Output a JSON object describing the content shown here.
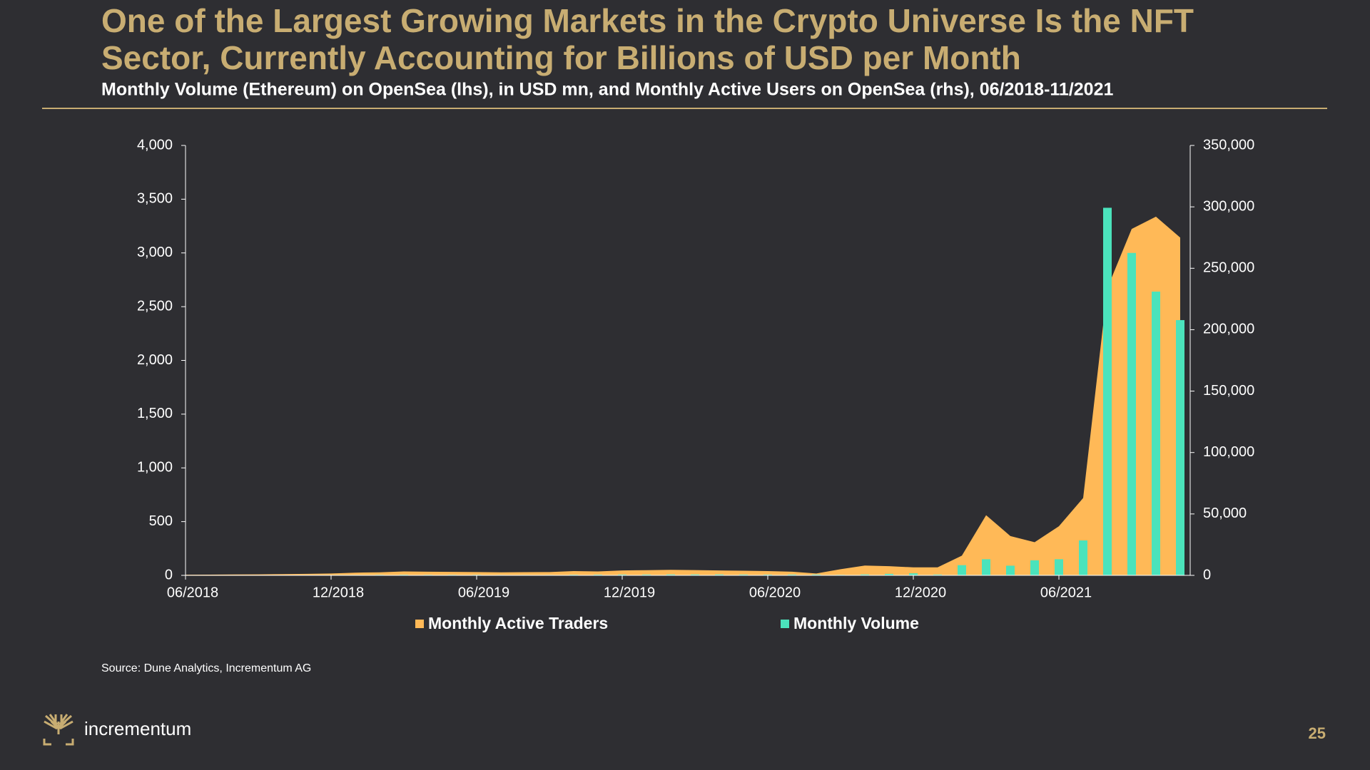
{
  "header": {
    "title_line1": "One of the Largest Growing Markets in the Crypto Universe Is the NFT",
    "title_line2": "Sector, Currently Accounting for Billions of USD per Month"
  },
  "chart_data": {
    "type": "combo",
    "subtitle": "Monthly Volume (Ethereum) on OpenSea (lhs), in USD mn, and Monthly Active Users on OpenSea (rhs), 06/2018-11/2021",
    "categories": [
      "06/2018",
      null,
      null,
      null,
      null,
      null,
      "12/2018",
      null,
      null,
      null,
      null,
      null,
      "06/2019",
      null,
      null,
      null,
      null,
      null,
      "12/2019",
      null,
      null,
      null,
      null,
      null,
      "06/2020",
      null,
      null,
      null,
      null,
      null,
      "12/2020",
      null,
      null,
      null,
      null,
      null,
      "06/2021",
      null,
      null,
      null,
      null,
      null
    ],
    "series": [
      {
        "name": "Monthly Active Traders",
        "type": "area",
        "axis": "y2",
        "color": "#ffb957",
        "values": [
          500,
          600,
          700,
          800,
          1000,
          1200,
          1500,
          2200,
          2500,
          3200,
          3000,
          2800,
          2700,
          2500,
          2600,
          2700,
          3500,
          3200,
          4000,
          4200,
          4500,
          4300,
          4000,
          3800,
          3500,
          3000,
          1500,
          5000,
          8000,
          7500,
          6500,
          6500,
          16000,
          49000,
          32000,
          27000,
          40000,
          63000,
          234000,
          282000,
          292000,
          275000
        ]
      },
      {
        "name": "Monthly Volume",
        "type": "bar",
        "axis": "y",
        "color": "#4be3bc",
        "values": [
          0.5,
          0.6,
          1,
          1,
          2,
          2,
          3,
          4,
          5,
          6,
          5,
          5,
          5,
          4,
          4,
          4,
          6,
          7,
          8,
          8,
          9,
          9,
          9,
          8,
          7,
          8,
          8,
          5,
          9,
          14,
          19,
          8,
          95,
          150,
          90,
          140,
          150,
          325,
          3420,
          3000,
          2640,
          2375
        ]
      }
    ],
    "ylim": [
      0,
      4000
    ],
    "yticks": [
      0,
      500,
      {
        "value": 1000,
        "label": "1,000"
      },
      {
        "value": 1500,
        "label": "1,500"
      },
      {
        "value": 2000,
        "label": "2,000"
      },
      {
        "value": 2500,
        "label": "2,500"
      },
      {
        "value": 3000,
        "label": "3,000"
      },
      {
        "value": 3500,
        "label": "3,500"
      },
      {
        "value": 4000,
        "label": "4,000"
      }
    ],
    "y2lim": [
      0,
      350000
    ],
    "y2ticks": [
      0,
      {
        "value": 50000,
        "label": "50,000"
      },
      {
        "value": 100000,
        "label": "100,000"
      },
      {
        "value": 150000,
        "label": "150,000"
      },
      {
        "value": 200000,
        "label": "200,000"
      },
      {
        "value": 250000,
        "label": "250,000"
      },
      {
        "value": 300000,
        "label": "300,000"
      },
      {
        "value": 350000,
        "label": "350,000"
      }
    ],
    "grid": false,
    "legend": "bottom",
    "source": "Source: Dune Analytics, Incrementum AG"
  },
  "footer": {
    "brand": "incrementum",
    "page_number": "25"
  }
}
